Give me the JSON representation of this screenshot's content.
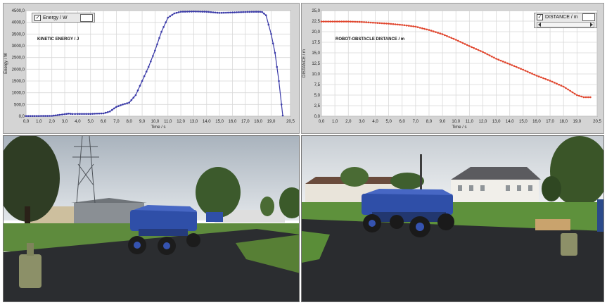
{
  "chart_data": [
    {
      "type": "line",
      "legend": "Energy / W",
      "annotation": "KINETIC ENERGY / J",
      "ylabel": "Energy / W",
      "xlabel": "Time / s",
      "xlim": [
        0,
        20.5
      ],
      "ylim": [
        0,
        4500
      ],
      "xticks": [
        "0,0",
        "1,0",
        "2,0",
        "3,0",
        "4,0",
        "5,0",
        "6,0",
        "7,0",
        "8,0",
        "9,0",
        "10,0",
        "11,0",
        "12,0",
        "13,0",
        "14,0",
        "15,0",
        "16,0",
        "17,0",
        "18,0",
        "19,0",
        "20,5"
      ],
      "yticks": [
        "0,0",
        "500,0",
        "1000,0",
        "1500,0",
        "2000,0",
        "2500,0",
        "3000,0",
        "3500,0",
        "4000,0",
        "4500,0"
      ],
      "grid": true,
      "legend_position": "top-left",
      "color": "#3a3aa8",
      "x": [
        0,
        1,
        2,
        2.6,
        3,
        3.3,
        3.6,
        4,
        5,
        6,
        6.5,
        7,
        7.5,
        8,
        8.5,
        9,
        9.5,
        10,
        10.5,
        11,
        11.5,
        12,
        13,
        14,
        15,
        16,
        17,
        18,
        18.3,
        18.6,
        19,
        19.3,
        19.6,
        19.8,
        19.9
      ],
      "y": [
        10,
        10,
        15,
        60,
        90,
        110,
        95,
        100,
        100,
        120,
        200,
        400,
        500,
        580,
        900,
        1500,
        2100,
        2800,
        3600,
        4200,
        4380,
        4450,
        4460,
        4450,
        4400,
        4420,
        4440,
        4450,
        4440,
        4300,
        3500,
        2700,
        1500,
        500,
        30
      ]
    },
    {
      "type": "line",
      "legend": "DISTANCE / m",
      "annotation": "ROBOT-OBSTACLE DISTANCE / m",
      "ylabel": "DISTANCE / m",
      "xlabel": "Time / s",
      "xlim": [
        0,
        20.5
      ],
      "ylim": [
        0,
        25
      ],
      "xticks": [
        "0,0",
        "1,0",
        "2,0",
        "3,0",
        "4,0",
        "5,0",
        "6,0",
        "7,0",
        "8,0",
        "9,0",
        "10,0",
        "11,0",
        "12,0",
        "13,0",
        "14,0",
        "15,0",
        "16,0",
        "17,0",
        "18,0",
        "19,0",
        "20,5"
      ],
      "yticks": [
        "0,0",
        "2,5",
        "5,0",
        "7,5",
        "10,0",
        "12,5",
        "15,0",
        "17,5",
        "20,0",
        "22,5",
        "25,0"
      ],
      "grid": true,
      "legend_position": "top-right",
      "color": "#e0462e",
      "x": [
        0,
        1,
        2,
        3,
        4,
        5,
        6,
        7,
        8,
        9,
        10,
        11,
        12,
        13,
        14,
        15,
        16,
        17,
        18,
        19,
        19.5,
        20
      ],
      "y": [
        22.4,
        22.4,
        22.4,
        22.3,
        22.1,
        21.9,
        21.6,
        21.2,
        20.4,
        19.4,
        18.1,
        16.6,
        15.2,
        13.6,
        12.3,
        11.0,
        9.6,
        8.4,
        7.0,
        5.0,
        4.5,
        4.5
      ]
    }
  ]
}
